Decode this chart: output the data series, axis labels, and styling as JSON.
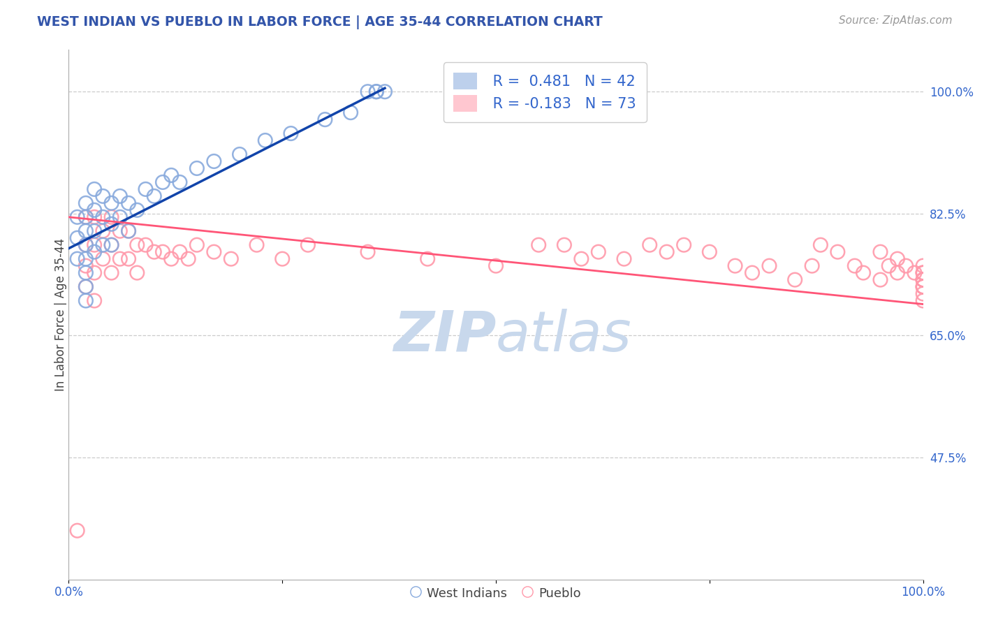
{
  "title": "WEST INDIAN VS PUEBLO IN LABOR FORCE | AGE 35-44 CORRELATION CHART",
  "source_text": "Source: ZipAtlas.com",
  "ylabel": "In Labor Force | Age 35-44",
  "xlim": [
    0.0,
    1.0
  ],
  "ylim": [
    0.3,
    1.06
  ],
  "y_tick_labels_right": [
    "100.0%",
    "82.5%",
    "65.0%",
    "47.5%"
  ],
  "y_ticks_right": [
    1.0,
    0.825,
    0.65,
    0.475
  ],
  "legend_r1": "R =  0.481",
  "legend_n1": "N = 42",
  "legend_r2": "R = -0.183",
  "legend_n2": "N = 73",
  "blue_color": "#88AADD",
  "pink_color": "#FF99AA",
  "blue_line_color": "#1144AA",
  "pink_line_color": "#FF5577",
  "legend_text_color": "#3366CC",
  "title_color": "#3355AA",
  "source_color": "#999999",
  "watermark_color": "#C8D8EC",
  "background_color": "#FFFFFF",
  "west_indians_x": [
    0.01,
    0.01,
    0.01,
    0.02,
    0.02,
    0.02,
    0.02,
    0.02,
    0.02,
    0.02,
    0.02,
    0.03,
    0.03,
    0.03,
    0.03,
    0.04,
    0.04,
    0.04,
    0.05,
    0.05,
    0.05,
    0.06,
    0.06,
    0.07,
    0.07,
    0.08,
    0.09,
    0.1,
    0.11,
    0.12,
    0.13,
    0.15,
    0.17,
    0.2,
    0.23,
    0.26,
    0.3,
    0.33,
    0.35,
    0.36,
    0.36,
    0.37
  ],
  "west_indians_y": [
    0.82,
    0.79,
    0.76,
    0.84,
    0.82,
    0.8,
    0.78,
    0.76,
    0.74,
    0.72,
    0.7,
    0.86,
    0.83,
    0.8,
    0.77,
    0.85,
    0.82,
    0.78,
    0.84,
    0.81,
    0.78,
    0.85,
    0.82,
    0.84,
    0.8,
    0.83,
    0.86,
    0.85,
    0.87,
    0.88,
    0.87,
    0.89,
    0.9,
    0.91,
    0.93,
    0.94,
    0.96,
    0.97,
    1.0,
    1.0,
    1.0,
    1.0
  ],
  "pueblo_x": [
    0.01,
    0.02,
    0.02,
    0.02,
    0.02,
    0.03,
    0.03,
    0.03,
    0.03,
    0.04,
    0.04,
    0.05,
    0.05,
    0.05,
    0.06,
    0.06,
    0.07,
    0.07,
    0.08,
    0.08,
    0.09,
    0.1,
    0.11,
    0.12,
    0.13,
    0.14,
    0.15,
    0.17,
    0.19,
    0.22,
    0.25,
    0.28,
    0.35,
    0.42,
    0.5,
    0.55,
    0.58,
    0.6,
    0.62,
    0.65,
    0.68,
    0.7,
    0.72,
    0.75,
    0.78,
    0.8,
    0.82,
    0.85,
    0.87,
    0.88,
    0.9,
    0.92,
    0.93,
    0.95,
    0.95,
    0.96,
    0.97,
    0.97,
    0.98,
    0.99,
    1.0,
    1.0,
    1.0,
    1.0,
    1.0,
    1.0,
    1.0,
    1.0,
    1.0,
    1.0,
    1.0,
    1.0,
    1.0
  ],
  "pueblo_y": [
    0.37,
    0.82,
    0.78,
    0.75,
    0.72,
    0.82,
    0.78,
    0.74,
    0.7,
    0.8,
    0.76,
    0.82,
    0.78,
    0.74,
    0.8,
    0.76,
    0.8,
    0.76,
    0.78,
    0.74,
    0.78,
    0.77,
    0.77,
    0.76,
    0.77,
    0.76,
    0.78,
    0.77,
    0.76,
    0.78,
    0.76,
    0.78,
    0.77,
    0.76,
    0.75,
    0.78,
    0.78,
    0.76,
    0.77,
    0.76,
    0.78,
    0.77,
    0.78,
    0.77,
    0.75,
    0.74,
    0.75,
    0.73,
    0.75,
    0.78,
    0.77,
    0.75,
    0.74,
    0.73,
    0.77,
    0.75,
    0.74,
    0.76,
    0.75,
    0.74,
    0.73,
    0.75,
    0.74,
    0.73,
    0.72,
    0.74,
    0.73,
    0.72,
    0.74,
    0.73,
    0.72,
    0.71,
    0.7
  ],
  "blue_regression": [
    0.0,
    0.37,
    0.823
  ],
  "pink_regression": [
    0.0,
    0.78,
    0.71
  ]
}
